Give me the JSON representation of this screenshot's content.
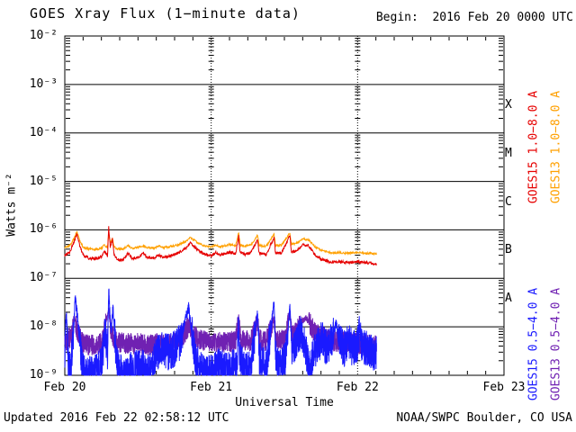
{
  "chart_data": {
    "type": "line",
    "title": "GOES Xray Flux (1−minute data)",
    "begin_label": "Begin:  2016 Feb 20 0000 UTC",
    "xlabel": "Universal Time",
    "ylabel": "Watts m⁻²",
    "ylim": [
      1e-09,
      0.01
    ],
    "y_tick_labels": [
      "10⁻²",
      "10⁻³",
      "10⁻⁴",
      "10⁻⁵",
      "10⁻⁶",
      "10⁻⁷",
      "10⁻⁸",
      "10⁻⁹"
    ],
    "x_ticks": [
      {
        "label": "Feb 20",
        "hours": 0
      },
      {
        "label": "Feb 21",
        "hours": 24
      },
      {
        "label": "Feb 22",
        "hours": 48
      },
      {
        "label": "Feb 23",
        "hours": 72
      }
    ],
    "x_span_hours": 72,
    "data_end_hours": 51.1,
    "minor_time_tick_hours": 3,
    "grid": "solid horizontal decade lines, dotted vertical day lines",
    "legend_position": "right, rotated 90",
    "class_bands": [
      {
        "label": "X",
        "center_log10": -3.5
      },
      {
        "label": "M",
        "center_log10": -4.5
      },
      {
        "label": "C",
        "center_log10": -5.5
      },
      {
        "label": "B",
        "center_log10": -6.5
      },
      {
        "label": "A",
        "center_log10": -7.5
      }
    ],
    "noise_seed": 20160222,
    "series": [
      {
        "id": "goes13_short",
        "name": "GOES13 0.5−4.0 A",
        "color": "#7021b2",
        "noise_dex": 0.22,
        "noise_damp_above": -7.9,
        "sample_step_hours": 0.02,
        "breakpoints": [
          [
            0,
            5e-09
          ],
          [
            1.0,
            6e-09
          ],
          [
            1.6,
            1.5e-08
          ],
          [
            2.2,
            7e-09
          ],
          [
            3.0,
            4.5e-09
          ],
          [
            4.5,
            4.2e-09
          ],
          [
            6.0,
            4.5e-09
          ],
          [
            7.2,
            2.4e-08
          ],
          [
            7.6,
            7e-09
          ],
          [
            8.2,
            5e-09
          ],
          [
            10,
            4.5e-09
          ],
          [
            12,
            4.5e-09
          ],
          [
            14,
            4.2e-09
          ],
          [
            15.5,
            4.5e-09
          ],
          [
            17,
            4.2e-09
          ],
          [
            18.5,
            5e-09
          ],
          [
            19.5,
            7e-09
          ],
          [
            20.4,
            1.1e-08
          ],
          [
            21,
            7e-09
          ],
          [
            22,
            5.5e-09
          ],
          [
            24,
            4.6e-09
          ],
          [
            26,
            4.8e-09
          ],
          [
            28,
            5e-09
          ],
          [
            28.5,
            1.6e-08
          ],
          [
            28.8,
            5.5e-09
          ],
          [
            30.5,
            5e-09
          ],
          [
            31.6,
            1.3e-08
          ],
          [
            31.9,
            5.5e-09
          ],
          [
            33,
            5e-09
          ],
          [
            34.3,
            1.5e-08
          ],
          [
            34.6,
            5.5e-09
          ],
          [
            36,
            5.5e-09
          ],
          [
            36.9,
            1.7e-08
          ],
          [
            37.3,
            6.5e-09
          ],
          [
            38,
            8e-09
          ],
          [
            38.8,
            1.3e-08
          ],
          [
            39.6,
            1.5e-08
          ],
          [
            40.3,
            1.1e-08
          ],
          [
            41,
            7.5e-09
          ],
          [
            42,
            6.5e-09
          ],
          [
            43,
            5.5e-09
          ],
          [
            44.5,
            5e-09
          ],
          [
            46,
            5e-09
          ],
          [
            47.5,
            4.6e-09
          ],
          [
            49,
            4.3e-09
          ],
          [
            50,
            4.2e-09
          ],
          [
            51.1,
            4e-09
          ]
        ]
      },
      {
        "id": "goes15_short",
        "name": "GOES15 0.5−4.0 A",
        "color": "#1a1aff",
        "noise_dex": 0.38,
        "noise_damp_above": -8.1,
        "sample_step_hours": 0.02,
        "breakpoints": [
          [
            0,
            2e-09
          ],
          [
            0.25,
            2.2e-08
          ],
          [
            0.55,
            2e-09
          ],
          [
            0.9,
            1.2e-09
          ],
          [
            1.3,
            4e-09
          ],
          [
            1.7,
            4e-08
          ],
          [
            2.1,
            1.5e-08
          ],
          [
            2.5,
            4e-09
          ],
          [
            3.0,
            1.2e-09
          ],
          [
            4.5,
            1e-09
          ],
          [
            6.0,
            1.6e-09
          ],
          [
            6.6,
            8e-09
          ],
          [
            7.0,
            3e-09
          ],
          [
            7.2,
            6.5e-08
          ],
          [
            7.4,
            1.8e-08
          ],
          [
            7.6,
            7e-09
          ],
          [
            7.9,
            2.8e-08
          ],
          [
            8.2,
            6e-09
          ],
          [
            8.6,
            1.6e-09
          ],
          [
            9.5,
            1e-09
          ],
          [
            11,
            1.3e-09
          ],
          [
            12.5,
            1.6e-09
          ],
          [
            13.5,
            1.1e-09
          ],
          [
            14.5,
            1.5e-09
          ],
          [
            15,
            3e-09
          ],
          [
            16,
            3.5e-09
          ],
          [
            17,
            3e-09
          ],
          [
            18,
            3.5e-09
          ],
          [
            19,
            5e-09
          ],
          [
            19.6,
            1.2e-08
          ],
          [
            20.3,
            2.5e-08
          ],
          [
            20.8,
            8e-09
          ],
          [
            21.3,
            2.5e-09
          ],
          [
            22,
            1.5e-09
          ],
          [
            23,
            1e-09
          ],
          [
            24.5,
            1.3e-09
          ],
          [
            25.5,
            1.6e-09
          ],
          [
            26.5,
            1.2e-09
          ],
          [
            27.5,
            1.6e-09
          ],
          [
            28.2,
            1.3e-09
          ],
          [
            28.5,
            1.2e-08
          ],
          [
            28.7,
            2.2e-09
          ],
          [
            29.5,
            1.2e-09
          ],
          [
            30.5,
            1.6e-09
          ],
          [
            31.6,
            2e-08
          ],
          [
            31.9,
            2.2e-09
          ],
          [
            33,
            1.5e-09
          ],
          [
            34.3,
            3e-08
          ],
          [
            34.6,
            2.2e-09
          ],
          [
            35.5,
            1.6e-09
          ],
          [
            36.2,
            2.2e-09
          ],
          [
            36.9,
            2.6e-08
          ],
          [
            37.2,
            3.5e-09
          ],
          [
            38,
            4.5e-09
          ],
          [
            38.6,
            8e-09
          ],
          [
            39.3,
            5e-09
          ],
          [
            40,
            1.5e-09
          ],
          [
            40.8,
            3e-09
          ],
          [
            41.5,
            4.5e-09
          ],
          [
            42.2,
            5.5e-09
          ],
          [
            43,
            3.5e-09
          ],
          [
            43.8,
            6e-09
          ],
          [
            44.5,
            1.2e-08
          ],
          [
            45,
            5e-09
          ],
          [
            45.8,
            3.5e-09
          ],
          [
            46.5,
            5e-09
          ],
          [
            47.2,
            3.5e-09
          ],
          [
            48,
            4.5e-09
          ],
          [
            48.4,
            9e-09
          ],
          [
            48.8,
            3.5e-09
          ],
          [
            49.5,
            3.8e-09
          ],
          [
            50.2,
            3.2e-09
          ],
          [
            51.1,
            2.8e-09
          ]
        ]
      },
      {
        "id": "goes13_long",
        "name": "GOES13 1.0−8.0 A",
        "color": "#ffa000",
        "noise_dex": 0.022,
        "sample_step_hours": 0.05,
        "breakpoints": [
          [
            0,
            4.3e-07
          ],
          [
            0.8,
            4.7e-07
          ],
          [
            1.6,
            7e-07
          ],
          [
            2.0,
            9.5e-07
          ],
          [
            2.4,
            6.2e-07
          ],
          [
            3.0,
            4.4e-07
          ],
          [
            4.0,
            4e-07
          ],
          [
            5.0,
            3.9e-07
          ],
          [
            6.0,
            4.2e-07
          ],
          [
            6.5,
            4.9e-07
          ],
          [
            7.0,
            4.3e-07
          ],
          [
            7.2,
            8.5e-07
          ],
          [
            7.45,
            5.2e-07
          ],
          [
            7.8,
            7e-07
          ],
          [
            8.1,
            4.4e-07
          ],
          [
            8.6,
            4e-07
          ],
          [
            9.5,
            4e-07
          ],
          [
            10.4,
            4.7e-07
          ],
          [
            11.0,
            4.2e-07
          ],
          [
            12.0,
            4.3e-07
          ],
          [
            12.9,
            4.8e-07
          ],
          [
            13.4,
            4.3e-07
          ],
          [
            14.5,
            4.2e-07
          ],
          [
            15.5,
            4.6e-07
          ],
          [
            16.2,
            4.3e-07
          ],
          [
            17.0,
            4.4e-07
          ],
          [
            18.0,
            4.7e-07
          ],
          [
            19.0,
            5.2e-07
          ],
          [
            20.0,
            6e-07
          ],
          [
            20.6,
            7e-07
          ],
          [
            21.3,
            6e-07
          ],
          [
            22.0,
            5.2e-07
          ],
          [
            23.0,
            4.6e-07
          ],
          [
            24.0,
            4.4e-07
          ],
          [
            24.8,
            4.9e-07
          ],
          [
            25.4,
            4.5e-07
          ],
          [
            26.2,
            4.7e-07
          ],
          [
            27.0,
            5e-07
          ],
          [
            28.0,
            4.7e-07
          ],
          [
            28.5,
            8.8e-07
          ],
          [
            28.75,
            4.9e-07
          ],
          [
            29.6,
            4.6e-07
          ],
          [
            30.6,
            5e-07
          ],
          [
            31.6,
            7.8e-07
          ],
          [
            31.85,
            4.8e-07
          ],
          [
            33.0,
            4.6e-07
          ],
          [
            34.3,
            8e-07
          ],
          [
            34.55,
            4.8e-07
          ],
          [
            35.5,
            4.8e-07
          ],
          [
            36.9,
            8.6e-07
          ],
          [
            37.15,
            5e-07
          ],
          [
            38.0,
            5.3e-07
          ],
          [
            39.0,
            6.6e-07
          ],
          [
            40.0,
            6.1e-07
          ],
          [
            41.0,
            4.5e-07
          ],
          [
            42.0,
            3.8e-07
          ],
          [
            43.5,
            3.4e-07
          ],
          [
            45.0,
            3.4e-07
          ],
          [
            46.5,
            3.3e-07
          ],
          [
            48.0,
            3.4e-07
          ],
          [
            49.5,
            3.3e-07
          ],
          [
            51.1,
            3.2e-07
          ]
        ]
      },
      {
        "id": "goes15_long",
        "name": "GOES15 1.0−8.0 A",
        "color": "#e60000",
        "noise_dex": 0.03,
        "sample_step_hours": 0.05,
        "breakpoints": [
          [
            0,
            3e-07
          ],
          [
            0.8,
            3.4e-07
          ],
          [
            1.6,
            6e-07
          ],
          [
            2.0,
            8.5e-07
          ],
          [
            2.4,
            5e-07
          ],
          [
            3.0,
            3e-07
          ],
          [
            4.0,
            2.6e-07
          ],
          [
            5.0,
            2.5e-07
          ],
          [
            6.0,
            2.8e-07
          ],
          [
            6.5,
            3.6e-07
          ],
          [
            7.0,
            2.9e-07
          ],
          [
            7.2,
            1.15e-06
          ],
          [
            7.45,
            4.2e-07
          ],
          [
            7.8,
            6.5e-07
          ],
          [
            8.1,
            3e-07
          ],
          [
            8.6,
            2.4e-07
          ],
          [
            9.5,
            2.4e-07
          ],
          [
            10.4,
            3.3e-07
          ],
          [
            11.0,
            2.6e-07
          ],
          [
            12.0,
            2.7e-07
          ],
          [
            12.9,
            3.3e-07
          ],
          [
            13.4,
            2.7e-07
          ],
          [
            14.5,
            2.6e-07
          ],
          [
            15.5,
            3e-07
          ],
          [
            16.2,
            2.7e-07
          ],
          [
            17.0,
            2.8e-07
          ],
          [
            18.0,
            3.1e-07
          ],
          [
            19.0,
            3.6e-07
          ],
          [
            20.0,
            4.4e-07
          ],
          [
            20.6,
            5.5e-07
          ],
          [
            21.3,
            4.4e-07
          ],
          [
            22.0,
            3.7e-07
          ],
          [
            23.0,
            3.1e-07
          ],
          [
            24.0,
            2.9e-07
          ],
          [
            24.8,
            3.4e-07
          ],
          [
            25.4,
            3e-07
          ],
          [
            26.2,
            3.2e-07
          ],
          [
            27.0,
            3.5e-07
          ],
          [
            28.0,
            3.2e-07
          ],
          [
            28.5,
            7.5e-07
          ],
          [
            28.75,
            3.4e-07
          ],
          [
            29.6,
            3.1e-07
          ],
          [
            30.6,
            3.5e-07
          ],
          [
            31.6,
            6.5e-07
          ],
          [
            31.85,
            3.3e-07
          ],
          [
            33.0,
            3.1e-07
          ],
          [
            34.3,
            7e-07
          ],
          [
            34.55,
            3.3e-07
          ],
          [
            35.5,
            3.3e-07
          ],
          [
            36.9,
            7.5e-07
          ],
          [
            37.15,
            3.5e-07
          ],
          [
            38.0,
            3.7e-07
          ],
          [
            39.0,
            5e-07
          ],
          [
            40.0,
            4.7e-07
          ],
          [
            41.0,
            3.1e-07
          ],
          [
            42.0,
            2.5e-07
          ],
          [
            43.5,
            2.2e-07
          ],
          [
            45.0,
            2.2e-07
          ],
          [
            46.5,
            2.1e-07
          ],
          [
            48.0,
            2.2e-07
          ],
          [
            49.5,
            2.1e-07
          ],
          [
            51.1,
            2e-07
          ]
        ]
      }
    ],
    "footer": {
      "updated": "Updated 2016 Feb 22 02:58:12 UTC",
      "source": "NOAA/SWPC Boulder, CO USA"
    }
  }
}
